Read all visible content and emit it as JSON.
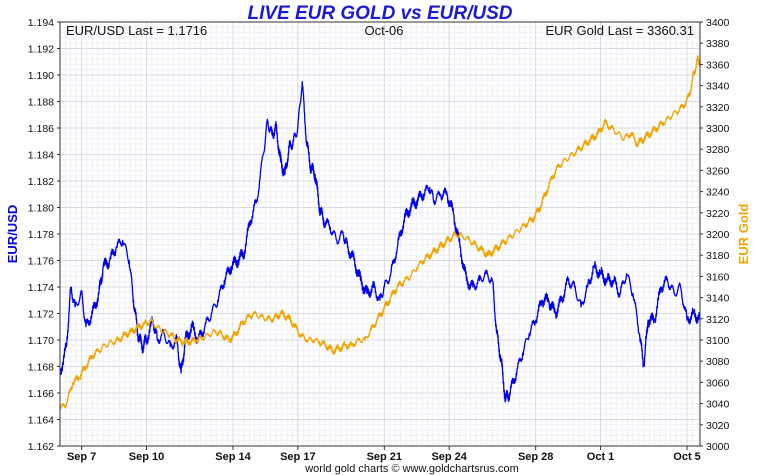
{
  "chart_data": {
    "type": "line",
    "title": "LIVE EUR GOLD vs EUR/USD",
    "header": {
      "left": "EUR/USD Last = 1.1716",
      "center": "Oct-06",
      "right": "EUR Gold Last = 3360.31"
    },
    "y_left": {
      "label": "EUR/USD",
      "range": [
        1.162,
        1.194
      ],
      "ticks": [
        "1.194",
        "1.192",
        "1.190",
        "1.188",
        "1.186",
        "1.184",
        "1.182",
        "1.180",
        "1.178",
        "1.176",
        "1.174",
        "1.172",
        "1.170",
        "1.168",
        "1.166",
        "1.164",
        "1.162"
      ],
      "color": "#0000ee"
    },
    "y_right": {
      "label": "EUR Gold",
      "range": [
        3000,
        3400
      ],
      "ticks": [
        "3400",
        "3380",
        "3360",
        "3340",
        "3320",
        "3300",
        "3280",
        "3260",
        "3240",
        "3220",
        "3200",
        "3180",
        "3160",
        "3140",
        "3120",
        "3100",
        "3080",
        "3060",
        "3040",
        "3020",
        "3000"
      ],
      "color": "#f0a500"
    },
    "x": {
      "range_days": [
        0,
        29.6
      ],
      "ticks": [
        {
          "label": "Sep 7",
          "day": 1
        },
        {
          "label": "Sep 10",
          "day": 4
        },
        {
          "label": "Sep 14",
          "day": 8
        },
        {
          "label": "Sep 17",
          "day": 11
        },
        {
          "label": "Sep 21",
          "day": 15
        },
        {
          "label": "Sep 24",
          "day": 18
        },
        {
          "label": "Sep 28",
          "day": 22
        },
        {
          "label": "Oct 1",
          "day": 25
        },
        {
          "label": "Oct 5",
          "day": 29
        }
      ]
    },
    "grid": true,
    "series": [
      {
        "name": "EUR/USD",
        "axis": "left",
        "color": "#0000ee",
        "points": [
          [
            0.0,
            1.1675
          ],
          [
            0.3,
            1.1695
          ],
          [
            0.5,
            1.174
          ],
          [
            0.7,
            1.1725
          ],
          [
            1.0,
            1.1735
          ],
          [
            1.2,
            1.171
          ],
          [
            1.5,
            1.172
          ],
          [
            1.8,
            1.1735
          ],
          [
            2.0,
            1.1755
          ],
          [
            2.3,
            1.176
          ],
          [
            2.6,
            1.177
          ],
          [
            2.9,
            1.1775
          ],
          [
            3.2,
            1.176
          ],
          [
            3.4,
            1.173
          ],
          [
            3.6,
            1.1705
          ],
          [
            3.8,
            1.1695
          ],
          [
            4.0,
            1.17
          ],
          [
            4.3,
            1.1715
          ],
          [
            4.5,
            1.17
          ],
          [
            4.8,
            1.1705
          ],
          [
            5.1,
            1.1695
          ],
          [
            5.4,
            1.17
          ],
          [
            5.6,
            1.1675
          ],
          [
            5.8,
            1.17
          ],
          [
            6.1,
            1.171
          ],
          [
            6.4,
            1.17
          ],
          [
            6.7,
            1.171
          ],
          [
            7.0,
            1.172
          ],
          [
            7.3,
            1.173
          ],
          [
            7.6,
            1.1745
          ],
          [
            7.9,
            1.1755
          ],
          [
            8.2,
            1.176
          ],
          [
            8.5,
            1.1765
          ],
          [
            8.8,
            1.179
          ],
          [
            9.1,
            1.1805
          ],
          [
            9.4,
            1.184
          ],
          [
            9.6,
            1.1865
          ],
          [
            9.8,
            1.1855
          ],
          [
            10.0,
            1.186
          ],
          [
            10.2,
            1.1835
          ],
          [
            10.4,
            1.1825
          ],
          [
            10.6,
            1.1845
          ],
          [
            10.8,
            1.185
          ],
          [
            11.0,
            1.186
          ],
          [
            11.2,
            1.1895
          ],
          [
            11.4,
            1.185
          ],
          [
            11.6,
            1.183
          ],
          [
            11.8,
            1.1825
          ],
          [
            12.0,
            1.18
          ],
          [
            12.2,
            1.179
          ],
          [
            12.5,
            1.1785
          ],
          [
            12.8,
            1.1775
          ],
          [
            13.1,
            1.178
          ],
          [
            13.3,
            1.177
          ],
          [
            13.6,
            1.176
          ],
          [
            13.9,
            1.1745
          ],
          [
            14.2,
            1.1735
          ],
          [
            14.5,
            1.174
          ],
          [
            14.8,
            1.173
          ],
          [
            15.0,
            1.174
          ],
          [
            15.3,
            1.175
          ],
          [
            15.6,
            1.177
          ],
          [
            15.9,
            1.179
          ],
          [
            16.2,
            1.18
          ],
          [
            16.5,
            1.1805
          ],
          [
            16.8,
            1.181
          ],
          [
            17.1,
            1.1815
          ],
          [
            17.3,
            1.1805
          ],
          [
            17.6,
            1.181
          ],
          [
            17.9,
            1.181
          ],
          [
            18.2,
            1.1795
          ],
          [
            18.5,
            1.177
          ],
          [
            18.8,
            1.1745
          ],
          [
            19.1,
            1.174
          ],
          [
            19.4,
            1.1745
          ],
          [
            19.7,
            1.175
          ],
          [
            20.0,
            1.1745
          ],
          [
            20.2,
            1.1705
          ],
          [
            20.4,
            1.1685
          ],
          [
            20.6,
            1.1655
          ],
          [
            20.8,
            1.166
          ],
          [
            21.1,
            1.1675
          ],
          [
            21.4,
            1.169
          ],
          [
            21.7,
            1.1705
          ],
          [
            22.0,
            1.1715
          ],
          [
            22.3,
            1.173
          ],
          [
            22.6,
            1.173
          ],
          [
            22.9,
            1.172
          ],
          [
            23.2,
            1.173
          ],
          [
            23.5,
            1.1745
          ],
          [
            23.8,
            1.174
          ],
          [
            24.1,
            1.1725
          ],
          [
            24.4,
            1.174
          ],
          [
            24.7,
            1.1755
          ],
          [
            25.0,
            1.175
          ],
          [
            25.3,
            1.1745
          ],
          [
            25.6,
            1.1745
          ],
          [
            25.9,
            1.1735
          ],
          [
            26.2,
            1.175
          ],
          [
            26.5,
            1.1735
          ],
          [
            26.8,
            1.1705
          ],
          [
            27.0,
            1.168
          ],
          [
            27.2,
            1.1715
          ],
          [
            27.5,
            1.1715
          ],
          [
            27.8,
            1.174
          ],
          [
            28.1,
            1.1745
          ],
          [
            28.4,
            1.1735
          ],
          [
            28.7,
            1.174
          ],
          [
            29.0,
            1.1715
          ],
          [
            29.3,
            1.172
          ],
          [
            29.6,
            1.1716
          ]
        ]
      },
      {
        "name": "EUR Gold",
        "axis": "right",
        "color": "#f0a500",
        "points": [
          [
            0.0,
            3035
          ],
          [
            0.3,
            3040
          ],
          [
            0.6,
            3060
          ],
          [
            0.9,
            3065
          ],
          [
            1.2,
            3075
          ],
          [
            1.5,
            3085
          ],
          [
            1.8,
            3090
          ],
          [
            2.1,
            3095
          ],
          [
            2.4,
            3098
          ],
          [
            2.7,
            3100
          ],
          [
            3.0,
            3105
          ],
          [
            3.3,
            3108
          ],
          [
            3.6,
            3112
          ],
          [
            3.9,
            3115
          ],
          [
            4.2,
            3118
          ],
          [
            4.5,
            3112
          ],
          [
            4.8,
            3108
          ],
          [
            5.1,
            3105
          ],
          [
            5.4,
            3100
          ],
          [
            5.7,
            3098
          ],
          [
            6.0,
            3098
          ],
          [
            6.3,
            3100
          ],
          [
            6.6,
            3102
          ],
          [
            6.9,
            3105
          ],
          [
            7.2,
            3108
          ],
          [
            7.5,
            3105
          ],
          [
            7.8,
            3100
          ],
          [
            8.1,
            3105
          ],
          [
            8.4,
            3115
          ],
          [
            8.7,
            3122
          ],
          [
            9.0,
            3125
          ],
          [
            9.3,
            3122
          ],
          [
            9.6,
            3120
          ],
          [
            9.9,
            3120
          ],
          [
            10.2,
            3125
          ],
          [
            10.5,
            3122
          ],
          [
            10.8,
            3115
          ],
          [
            11.1,
            3105
          ],
          [
            11.4,
            3100
          ],
          [
            11.7,
            3100
          ],
          [
            12.0,
            3098
          ],
          [
            12.3,
            3095
          ],
          [
            12.6,
            3090
          ],
          [
            12.9,
            3092
          ],
          [
            13.2,
            3095
          ],
          [
            13.5,
            3095
          ],
          [
            13.8,
            3100
          ],
          [
            14.1,
            3100
          ],
          [
            14.4,
            3110
          ],
          [
            14.7,
            3120
          ],
          [
            15.0,
            3130
          ],
          [
            15.3,
            3140
          ],
          [
            15.6,
            3150
          ],
          [
            15.9,
            3155
          ],
          [
            16.2,
            3160
          ],
          [
            16.5,
            3168
          ],
          [
            16.8,
            3175
          ],
          [
            17.1,
            3180
          ],
          [
            17.4,
            3185
          ],
          [
            17.7,
            3190
          ],
          [
            18.0,
            3195
          ],
          [
            18.3,
            3200
          ],
          [
            18.6,
            3198
          ],
          [
            18.9,
            3195
          ],
          [
            19.2,
            3190
          ],
          [
            19.5,
            3185
          ],
          [
            19.8,
            3180
          ],
          [
            20.1,
            3185
          ],
          [
            20.4,
            3190
          ],
          [
            20.7,
            3195
          ],
          [
            21.0,
            3200
          ],
          [
            21.3,
            3205
          ],
          [
            21.6,
            3210
          ],
          [
            21.9,
            3215
          ],
          [
            22.2,
            3225
          ],
          [
            22.5,
            3240
          ],
          [
            22.8,
            3255
          ],
          [
            23.1,
            3265
          ],
          [
            23.4,
            3270
          ],
          [
            23.7,
            3275
          ],
          [
            24.0,
            3280
          ],
          [
            24.3,
            3285
          ],
          [
            24.6,
            3290
          ],
          [
            24.9,
            3295
          ],
          [
            25.2,
            3305
          ],
          [
            25.5,
            3300
          ],
          [
            25.8,
            3295
          ],
          [
            26.1,
            3290
          ],
          [
            26.4,
            3295
          ],
          [
            26.7,
            3285
          ],
          [
            27.0,
            3290
          ],
          [
            27.3,
            3295
          ],
          [
            27.6,
            3300
          ],
          [
            27.9,
            3305
          ],
          [
            28.2,
            3310
          ],
          [
            28.5,
            3315
          ],
          [
            28.8,
            3320
          ],
          [
            29.1,
            3330
          ],
          [
            29.3,
            3350
          ],
          [
            29.5,
            3365
          ],
          [
            29.6,
            3360
          ]
        ]
      }
    ],
    "footer": "world gold charts © www.goldchartsrus.com"
  }
}
